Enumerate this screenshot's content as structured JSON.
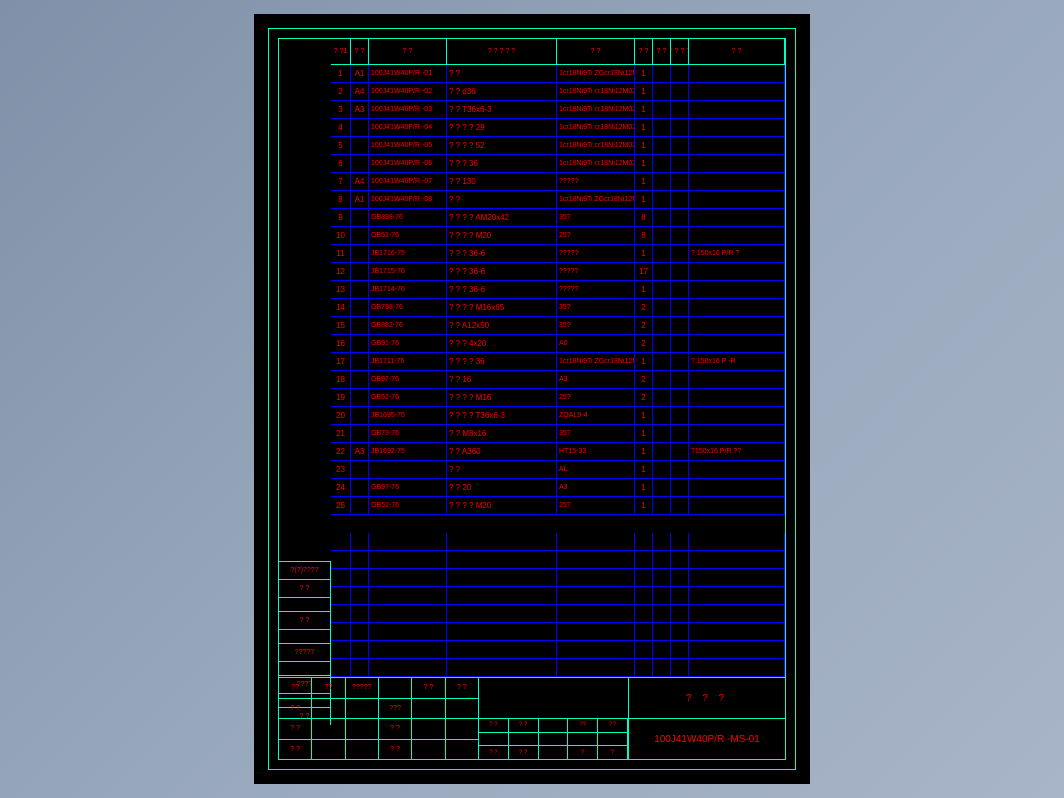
{
  "colors": {
    "background_gradient": [
      "#8090a8",
      "#a8b4c8"
    ],
    "sheet_bg": "#000000",
    "frame": "#00ffc8",
    "grid": "#0000ff",
    "text": "#ff0000"
  },
  "header": {
    "c_idx": "? ?1",
    "c_a": "? ?",
    "c_code": "?    ?",
    "c_name": "?  ?  ?  ?  ?",
    "c_mat": "?      ?",
    "c_qty": "? ?",
    "c_w1": "? ?",
    "c_w2": "? ? ? ?",
    "c_note": "?      ?"
  },
  "rows": [
    {
      "idx": "1",
      "a": "A1",
      "code": "100J41W40P/R -01",
      "name": "?    ?",
      "mat": "1cr18Ni9Ti ZGcr18Ni12M02Ti",
      "qty": "1",
      "w1": "",
      "w2": "",
      "note": ""
    },
    {
      "idx": "2",
      "a": "A4",
      "code": "100J41W40P/R -02",
      "name": "?    ?   d36",
      "mat": "1cr18Ni9Ti cr18Ni12M02Ti",
      "qty": "1",
      "w1": "",
      "w2": "",
      "note": ""
    },
    {
      "idx": "3",
      "a": "A3",
      "code": "100J41W40P/R -03",
      "name": "?    ?  T36x6-3",
      "mat": "1cr18Ni9Ti cr18Ni12M02Ti",
      "qty": "1",
      "w1": "",
      "w2": "",
      "note": ""
    },
    {
      "idx": "4",
      "a": "",
      "code": "100J41W40P/R -04",
      "name": "?  ?  ?  ?     29",
      "mat": "1cr18Ni9Ti cr18Ni12M02Ti",
      "qty": "1",
      "w1": "",
      "w2": "",
      "note": ""
    },
    {
      "idx": "5",
      "a": "",
      "code": "100J41W40P/R -05",
      "name": "?  ?  ?  ?     52",
      "mat": "1cr18Ni9Ti cr18Ni12M02Ti",
      "qty": "1",
      "w1": "",
      "w2": "",
      "note": ""
    },
    {
      "idx": "6",
      "a": "",
      "code": "100J41W40P/R -06",
      "name": "?  ?  ?    36",
      "mat": "1cr18Ni9Ti cr18Ni12M02Ti",
      "qty": "1",
      "w1": "",
      "w2": "",
      "note": ""
    },
    {
      "idx": "7",
      "a": "A4",
      "code": "100J41W40P/R -07",
      "name": "?    ?    130",
      "mat": "?????",
      "qty": "1",
      "w1": "",
      "w2": "",
      "note": ""
    },
    {
      "idx": "8",
      "a": "A1",
      "code": "100J41W40P/R -08",
      "name": "?    ?",
      "mat": "1cr18Ni9Ti ZGcr18Ni12M02Ti",
      "qty": "1",
      "w1": "",
      "w2": "",
      "note": ""
    },
    {
      "idx": "9",
      "a": "",
      "code": "GB898-76",
      "name": "?  ?  ?  ?   AM20x42",
      "mat": "35?",
      "qty": "8",
      "w1": "",
      "w2": "",
      "note": ""
    },
    {
      "idx": "10",
      "a": "",
      "code": "GB52-76",
      "name": "?  ?  ?  ?    M20",
      "mat": "25?",
      "qty": "8",
      "w1": "",
      "w2": "",
      "note": ""
    },
    {
      "idx": "11",
      "a": "",
      "code": "JB1716-75",
      "name": "?  ?  ?     36-6",
      "mat": "?????",
      "qty": "1",
      "w1": "",
      "w2": "",
      "note": "? 150x16 P/R ?"
    },
    {
      "idx": "12",
      "a": "",
      "code": "JB1715-76",
      "name": "?   ?   ?   36-6",
      "mat": "?????",
      "qty": "17",
      "w1": "",
      "w2": "",
      "note": ""
    },
    {
      "idx": "13",
      "a": "",
      "code": "JB1714-76",
      "name": "?   ?   ?   36-6",
      "mat": "?????",
      "qty": "1",
      "w1": "",
      "w2": "",
      "note": ""
    },
    {
      "idx": "14",
      "a": "",
      "code": "GB798-76",
      "name": "?  ?  ?  ?   M16x65",
      "mat": "35?",
      "qty": "2",
      "w1": "",
      "w2": "",
      "note": ""
    },
    {
      "idx": "15",
      "a": "",
      "code": "GB882-76",
      "name": "?    ?    A12x50",
      "mat": "35?",
      "qty": "2",
      "w1": "",
      "w2": "",
      "note": ""
    },
    {
      "idx": "16",
      "a": "",
      "code": "GB91-76",
      "name": "?   ?   ?   4x20",
      "mat": "A0",
      "qty": "2",
      "w1": "",
      "w2": "",
      "note": ""
    },
    {
      "idx": "17",
      "a": "",
      "code": "JB1711-75",
      "name": "?  ?  ?  ?   36",
      "mat": "1cr18Ni9Ti ZGcr18Ni12M02Ti",
      "qty": "1",
      "w1": "",
      "w2": "",
      "note": "? 150x16 P -R"
    },
    {
      "idx": "18",
      "a": "",
      "code": "GB97-76",
      "name": "?    ?    16",
      "mat": "A3",
      "qty": "2",
      "w1": "",
      "w2": "",
      "note": ""
    },
    {
      "idx": "19",
      "a": "",
      "code": "GB52-76",
      "name": "?  ?  ?  ?    M16",
      "mat": "25?",
      "qty": "2",
      "w1": "",
      "w2": "",
      "note": ""
    },
    {
      "idx": "20",
      "a": "",
      "code": "JB1695-75",
      "name": "?  ?  ?  ?   T36x6-3",
      "mat": "ZQAL9-4",
      "qty": "1",
      "w1": "",
      "w2": "",
      "note": ""
    },
    {
      "idx": "21",
      "a": "",
      "code": "GB73-76",
      "name": "?   ?  M8x16",
      "mat": "35?",
      "qty": "1",
      "w1": "",
      "w2": "",
      "note": ""
    },
    {
      "idx": "22",
      "a": "A3",
      "code": "JB1692-75",
      "name": "?   ?    A360",
      "mat": "HT15-33",
      "qty": "1",
      "w1": "",
      "w2": "",
      "note": "?150x16 P/R ??"
    },
    {
      "idx": "23",
      "a": "",
      "code": "",
      "name": "?    ?",
      "mat": "AL",
      "qty": "1",
      "w1": "",
      "w2": "",
      "note": ""
    },
    {
      "idx": "24",
      "a": "",
      "code": "GB97-76",
      "name": "?    ?    20",
      "mat": "A3",
      "qty": "1",
      "w1": "",
      "w2": "",
      "note": ""
    },
    {
      "idx": "25",
      "a": "",
      "code": "GB52-76",
      "name": "?  ?  ?  ?    M20",
      "mat": "25?",
      "qty": "1",
      "w1": "",
      "w2": "",
      "note": ""
    }
  ],
  "left_stack": [
    "?(?)????",
    "?   ?",
    "",
    "?    ?",
    "",
    "?????",
    "",
    "????",
    "",
    "?   ?"
  ],
  "title_block": {
    "left_rows": [
      [
        "??",
        "??",
        "?????",
        "",
        "?  ?",
        "?  ?"
      ],
      [
        "?  ?",
        "",
        "",
        "???",
        "",
        ""
      ],
      [
        "?  ?",
        "",
        "",
        "?  ?",
        "",
        ""
      ],
      [
        "?  ?",
        "",
        "",
        "?  ?",
        "",
        ""
      ]
    ],
    "mid_rows": [
      [
        "?  ?",
        "?  ?",
        "",
        "??",
        "??"
      ],
      [
        "",
        "",
        "",
        "",
        ""
      ],
      [
        "?  ?",
        "?  ?",
        "",
        "?",
        "?"
      ]
    ],
    "right_top": "?  ?  ?",
    "right_bot": "100J41W40P/R -MS-01"
  }
}
